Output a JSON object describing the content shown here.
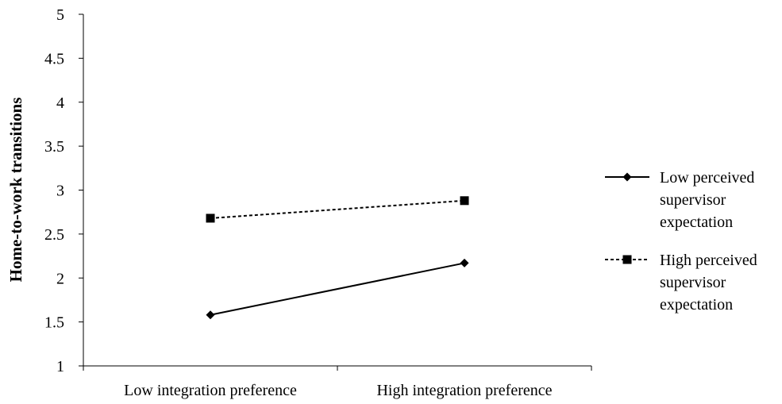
{
  "chart_data": {
    "type": "line",
    "title": "",
    "xlabel": "",
    "ylabel": "Home-to-work transitions",
    "categories": [
      "Low integration preference",
      "High integration preference"
    ],
    "ylim": [
      1,
      5
    ],
    "yticks": [
      "1",
      "1.5",
      "2",
      "2.5",
      "3",
      "3.5",
      "4",
      "4.5",
      "5"
    ],
    "grid": false,
    "legend_position": "right",
    "series": [
      {
        "name": "Low perceived supervisor expectation",
        "legend_lines": [
          "Low perceived",
          "supervisor",
          "expectation"
        ],
        "values": [
          1.58,
          2.17
        ],
        "line_style": "solid",
        "marker": "diamond",
        "color": "#000000"
      },
      {
        "name": "High perceived supervisor expectation",
        "legend_lines": [
          "High perceived",
          "supervisor",
          "expectation"
        ],
        "values": [
          2.68,
          2.88
        ],
        "line_style": "dashed",
        "marker": "square",
        "color": "#000000"
      }
    ]
  }
}
